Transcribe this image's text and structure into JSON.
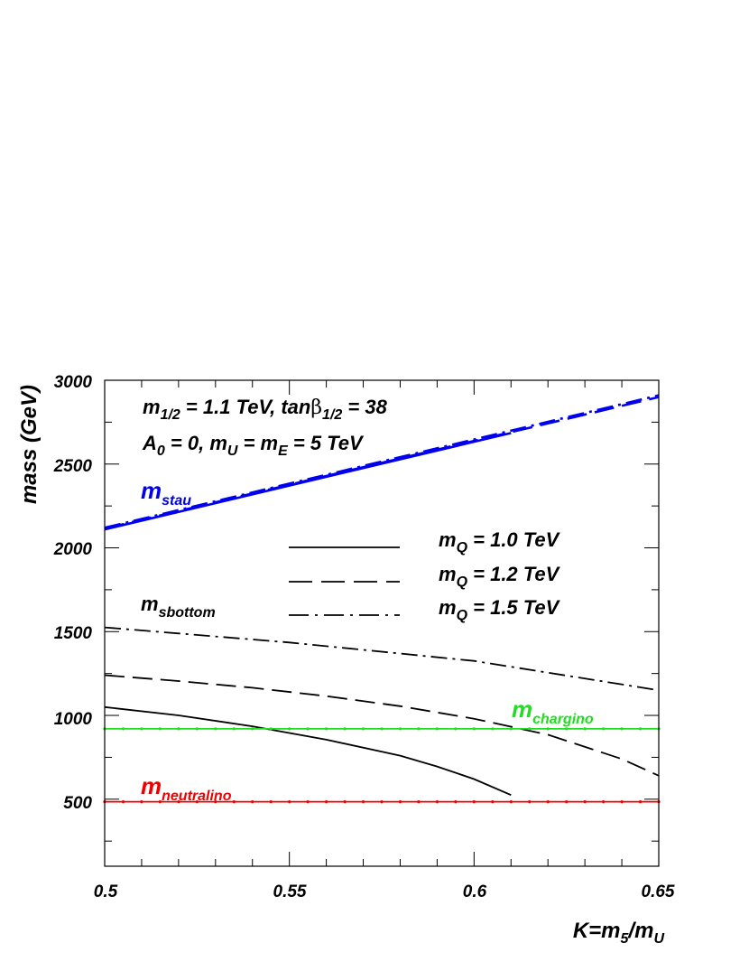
{
  "chart_data": {
    "type": "line",
    "xlabel": {
      "main": "K=m",
      "sub1": "5",
      "mid": "/m",
      "sub2": "U"
    },
    "ylabel": "mass (GeV)",
    "xlim": [
      0.5,
      0.65
    ],
    "ylim": [
      100,
      3000
    ],
    "x_ticks": [
      "0.5",
      "0.55",
      "0.6",
      "0.65"
    ],
    "y_ticks": [
      "500",
      "1000",
      "1500",
      "2000",
      "2500",
      "3000"
    ],
    "grid": false,
    "params": {
      "line1": {
        "a": "m",
        "a_sub": "1/2",
        "b": " = 1.1 TeV,  tan",
        "beta": "β",
        "c_sub": "1/2",
        "d": " = 38"
      },
      "line2": {
        "a": "A",
        "a_sub": "0",
        "b": " = 0,   m",
        "b_sub": "U",
        "c": " = m",
        "c_sub": "E",
        "d": " = 5 TeV"
      }
    },
    "legend": [
      {
        "style": "solid",
        "main": "m",
        "sub": "Q",
        "rest": " = 1.0 TeV"
      },
      {
        "style": "dashed",
        "main": "m",
        "sub": "Q",
        "rest": " = 1.2 TeV"
      },
      {
        "style": "dashdot",
        "main": "m",
        "sub": "Q",
        "rest": " = 1.5 TeV"
      }
    ],
    "curve_labels": {
      "stau": {
        "main": "m",
        "sub": "stau",
        "color": "#0000ee"
      },
      "sbottom": {
        "main": "m",
        "sub": "sbottom",
        "color": "#000000"
      },
      "chargino": {
        "main": "m",
        "sub": "chargino",
        "color": "#22dd22"
      },
      "neutralino": {
        "main": "m",
        "sub": "neutralino",
        "color": "#ee0000"
      }
    },
    "series": [
      {
        "group": "stau",
        "style": "solid",
        "color": "#0000ee",
        "x": [
          0.5,
          0.61
        ],
        "y": [
          2110,
          2685
        ]
      },
      {
        "group": "stau",
        "style": "dashed",
        "color": "#0000ee",
        "x": [
          0.5,
          0.65
        ],
        "y": [
          2115,
          2900
        ]
      },
      {
        "group": "stau",
        "style": "dashdot",
        "color": "#0000ee",
        "x": [
          0.5,
          0.65
        ],
        "y": [
          2120,
          2910
        ]
      },
      {
        "group": "sbottom",
        "style": "solid",
        "color": "#000000",
        "x": [
          0.5,
          0.52,
          0.54,
          0.56,
          0.58,
          0.59,
          0.6,
          0.61
        ],
        "y": [
          1050,
          1000,
          935,
          855,
          760,
          695,
          620,
          525
        ]
      },
      {
        "group": "sbottom",
        "style": "dashed",
        "color": "#000000",
        "x": [
          0.5,
          0.52,
          0.54,
          0.56,
          0.58,
          0.6,
          0.62,
          0.64,
          0.65
        ],
        "y": [
          1240,
          1205,
          1165,
          1115,
          1055,
          980,
          885,
          740,
          640
        ]
      },
      {
        "group": "sbottom",
        "style": "dashdot",
        "color": "#000000",
        "x": [
          0.5,
          0.55,
          0.6,
          0.65
        ],
        "y": [
          1525,
          1435,
          1325,
          1150
        ]
      },
      {
        "group": "chargino",
        "style": "solid",
        "color": "#22dd22",
        "x": [
          0.5,
          0.65
        ],
        "y": [
          920,
          920
        ]
      },
      {
        "group": "neutralino",
        "style": "solid",
        "color": "#ee0000",
        "x": [
          0.5,
          0.65
        ],
        "y": [
          485,
          485
        ]
      }
    ]
  }
}
